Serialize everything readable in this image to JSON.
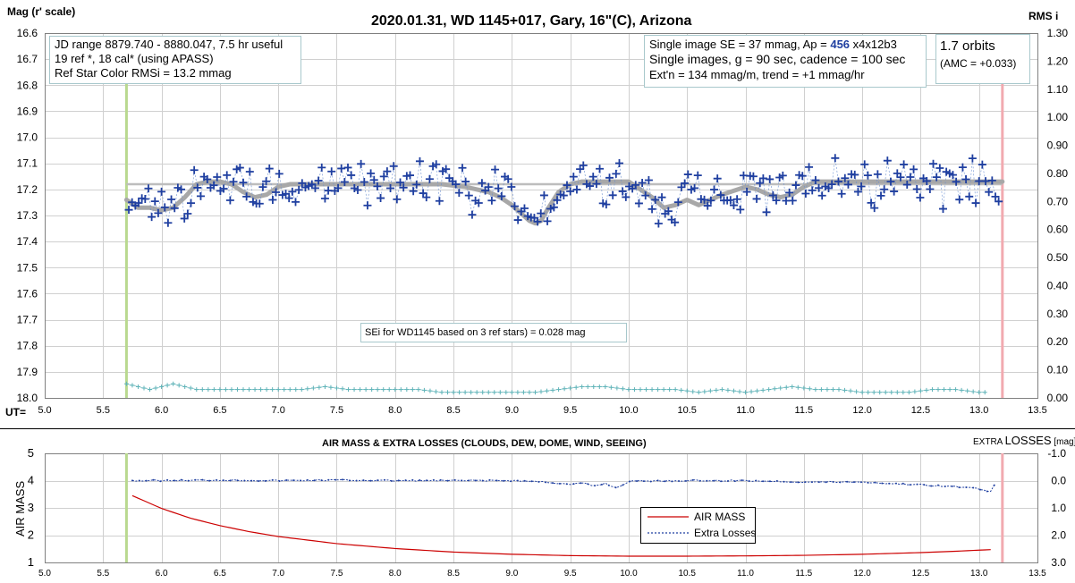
{
  "chart_data": [
    {
      "type": "scatter",
      "title": "2020.01.31, WD 1145+017, Gary, 16\"(C), Arizona",
      "ylabel": "Mag (r' scale)",
      "ylabel_right": "RMS i",
      "xlabel": "UT=",
      "xlim": [
        5.0,
        13.5
      ],
      "ylim": [
        16.6,
        18.0
      ],
      "y_inverted": true,
      "ylim_right": [
        0.0,
        1.3
      ],
      "x_ticks": [
        "5.0",
        "5.5",
        "6.0",
        "6.5",
        "7.0",
        "7.5",
        "8.0",
        "8.5",
        "9.0",
        "9.5",
        "10.0",
        "10.5",
        "11.0",
        "11.5",
        "12.0",
        "12.5",
        "13.0",
        "13.5"
      ],
      "y_ticks": [
        "16.6",
        "16.7",
        "16.8",
        "16.9",
        "17.0",
        "17.1",
        "17.2",
        "17.3",
        "17.4",
        "17.5",
        "17.6",
        "17.7",
        "17.8",
        "17.9",
        "18.0"
      ],
      "y_ticks_right": [
        "1.30",
        "1.20",
        "1.10",
        "1.00",
        "0.90",
        "0.80",
        "0.70",
        "0.60",
        "0.50",
        "0.40",
        "0.30",
        "0.20",
        "0.10",
        "0.00"
      ],
      "grid": true,
      "start_marker_x": 5.7,
      "end_marker_x": 13.2,
      "reference_level": 17.18,
      "smooth_curve": {
        "x": [
          5.7,
          5.8,
          5.9,
          6.0,
          6.1,
          6.2,
          6.3,
          6.4,
          6.5,
          6.6,
          6.7,
          6.8,
          6.9,
          7.0,
          7.1,
          7.2,
          7.4,
          7.6,
          7.8,
          8.0,
          8.2,
          8.4,
          8.6,
          8.8,
          8.9,
          9.0,
          9.1,
          9.15,
          9.2,
          9.25,
          9.3,
          9.4,
          9.5,
          9.6,
          9.8,
          10.0,
          10.2,
          10.3,
          10.4,
          10.5,
          10.6,
          10.8,
          11.0,
          11.1,
          11.2,
          11.3,
          11.4,
          11.5,
          11.6,
          11.8,
          12.0,
          12.4,
          12.8,
          13.1,
          13.2
        ],
        "y": [
          17.24,
          17.27,
          17.27,
          17.28,
          17.27,
          17.23,
          17.18,
          17.17,
          17.17,
          17.18,
          17.21,
          17.23,
          17.22,
          17.19,
          17.18,
          17.18,
          17.18,
          17.18,
          17.18,
          17.18,
          17.18,
          17.18,
          17.19,
          17.21,
          17.23,
          17.26,
          17.3,
          17.32,
          17.33,
          17.32,
          17.28,
          17.21,
          17.18,
          17.17,
          17.17,
          17.17,
          17.23,
          17.27,
          17.26,
          17.24,
          17.26,
          17.22,
          17.19,
          17.2,
          17.22,
          17.23,
          17.22,
          17.19,
          17.17,
          17.17,
          17.17,
          17.17,
          17.17,
          17.17,
          17.17
        ]
      },
      "rms_series": {
        "name": "RMS i",
        "x": [
          5.7,
          5.8,
          5.9,
          6.0,
          6.1,
          6.2,
          6.3,
          6.5,
          6.7,
          7.0,
          7.2,
          7.4,
          7.6,
          7.8,
          8.0,
          8.2,
          8.4,
          8.6,
          8.8,
          9.0,
          9.2,
          9.4,
          9.6,
          9.8,
          10.0,
          10.2,
          10.4,
          10.6,
          10.8,
          11.0,
          11.2,
          11.4,
          11.6,
          11.8,
          12.0,
          12.2,
          12.4,
          12.6,
          12.8,
          13.0,
          13.1
        ],
        "y": [
          0.05,
          0.04,
          0.03,
          0.04,
          0.05,
          0.04,
          0.03,
          0.03,
          0.03,
          0.03,
          0.03,
          0.04,
          0.03,
          0.03,
          0.03,
          0.03,
          0.02,
          0.02,
          0.02,
          0.02,
          0.02,
          0.03,
          0.04,
          0.04,
          0.03,
          0.03,
          0.03,
          0.02,
          0.03,
          0.02,
          0.03,
          0.04,
          0.03,
          0.03,
          0.02,
          0.02,
          0.02,
          0.03,
          0.03,
          0.02,
          0.02
        ]
      },
      "annotations": {
        "box1": [
          "JD range 8879.740 - 8880.047, 7.5 hr useful",
          "19 ref *, 18 cal* (using APASS)",
          "Ref Star Color RMSi = 13.2 mmag"
        ],
        "box2_line1_pre": "Single image SE = 37 mmag, Ap = ",
        "box2_line1_ap": "456",
        "box2_line1_post": " x4x12b3",
        "box2_line2": "Single images, g = 90 sec, cadence = 100 sec",
        "box2_line3": "Ext'n = 134 mmag/m, trend = +1 mmag/hr",
        "box3_line1": "1.7 orbits",
        "box3_line2": "(AMC = +0.033)",
        "box4": "SEi for WD1145 based on 3 ref stars) = 0.028 mag"
      }
    },
    {
      "type": "line",
      "title": "AIR MASS & EXTRA LOSSES (CLOUDS, DEW, DOME, WIND, SEEING)",
      "ylabel": "AIR MASS",
      "ylabel_right_pre": "EXTRA ",
      "ylabel_right_big": "LOSSES",
      "ylabel_right_post": " [mag]",
      "xlim": [
        5.0,
        13.5
      ],
      "ylim": [
        1,
        5
      ],
      "ylim_right": [
        -1.0,
        3.0
      ],
      "x_ticks": [
        "5.0",
        "5.5",
        "6.0",
        "6.5",
        "7.0",
        "7.5",
        "8.0",
        "8.5",
        "9.0",
        "9.5",
        "10.0",
        "10.5",
        "11.0",
        "11.5",
        "12.0",
        "12.5",
        "13.0",
        "13.5"
      ],
      "y_ticks": [
        "5",
        "4",
        "3",
        "2",
        "1"
      ],
      "y_ticks_right": [
        "-1.0",
        "0.0",
        "1.0",
        "2.0",
        "3.0"
      ],
      "legend_position": "center-right",
      "series": [
        {
          "name": "AIR MASS",
          "color": "#cc0000",
          "x": [
            5.75,
            6.0,
            6.25,
            6.5,
            6.75,
            7.0,
            7.5,
            8.0,
            8.5,
            9.0,
            9.5,
            10.0,
            10.5,
            11.0,
            11.5,
            12.0,
            12.5,
            12.8,
            13.0,
            13.15
          ],
          "y": [
            3.45,
            2.98,
            2.62,
            2.35,
            2.13,
            1.95,
            1.69,
            1.51,
            1.38,
            1.3,
            1.25,
            1.23,
            1.23,
            1.24,
            1.26,
            1.3,
            1.36,
            1.41,
            1.45,
            1.48
          ]
        },
        {
          "name": "Extra Losses",
          "color": "#1f3fa0",
          "x": [
            5.75,
            6.0,
            6.5,
            7.0,
            7.5,
            8.0,
            8.5,
            9.0,
            9.3,
            9.5,
            9.6,
            9.7,
            9.8,
            9.9,
            10.0,
            10.5,
            11.0,
            11.5,
            12.0,
            12.3,
            12.5,
            12.7,
            12.9,
            13.0,
            13.1,
            13.15
          ],
          "y": [
            0.0,
            0.0,
            -0.02,
            0.0,
            -0.02,
            0.0,
            0.0,
            0.0,
            0.05,
            0.15,
            0.08,
            0.2,
            0.1,
            0.28,
            0.02,
            0.0,
            0.0,
            0.05,
            0.05,
            0.12,
            0.15,
            0.2,
            0.25,
            0.3,
            0.4,
            0.05
          ]
        }
      ]
    }
  ]
}
